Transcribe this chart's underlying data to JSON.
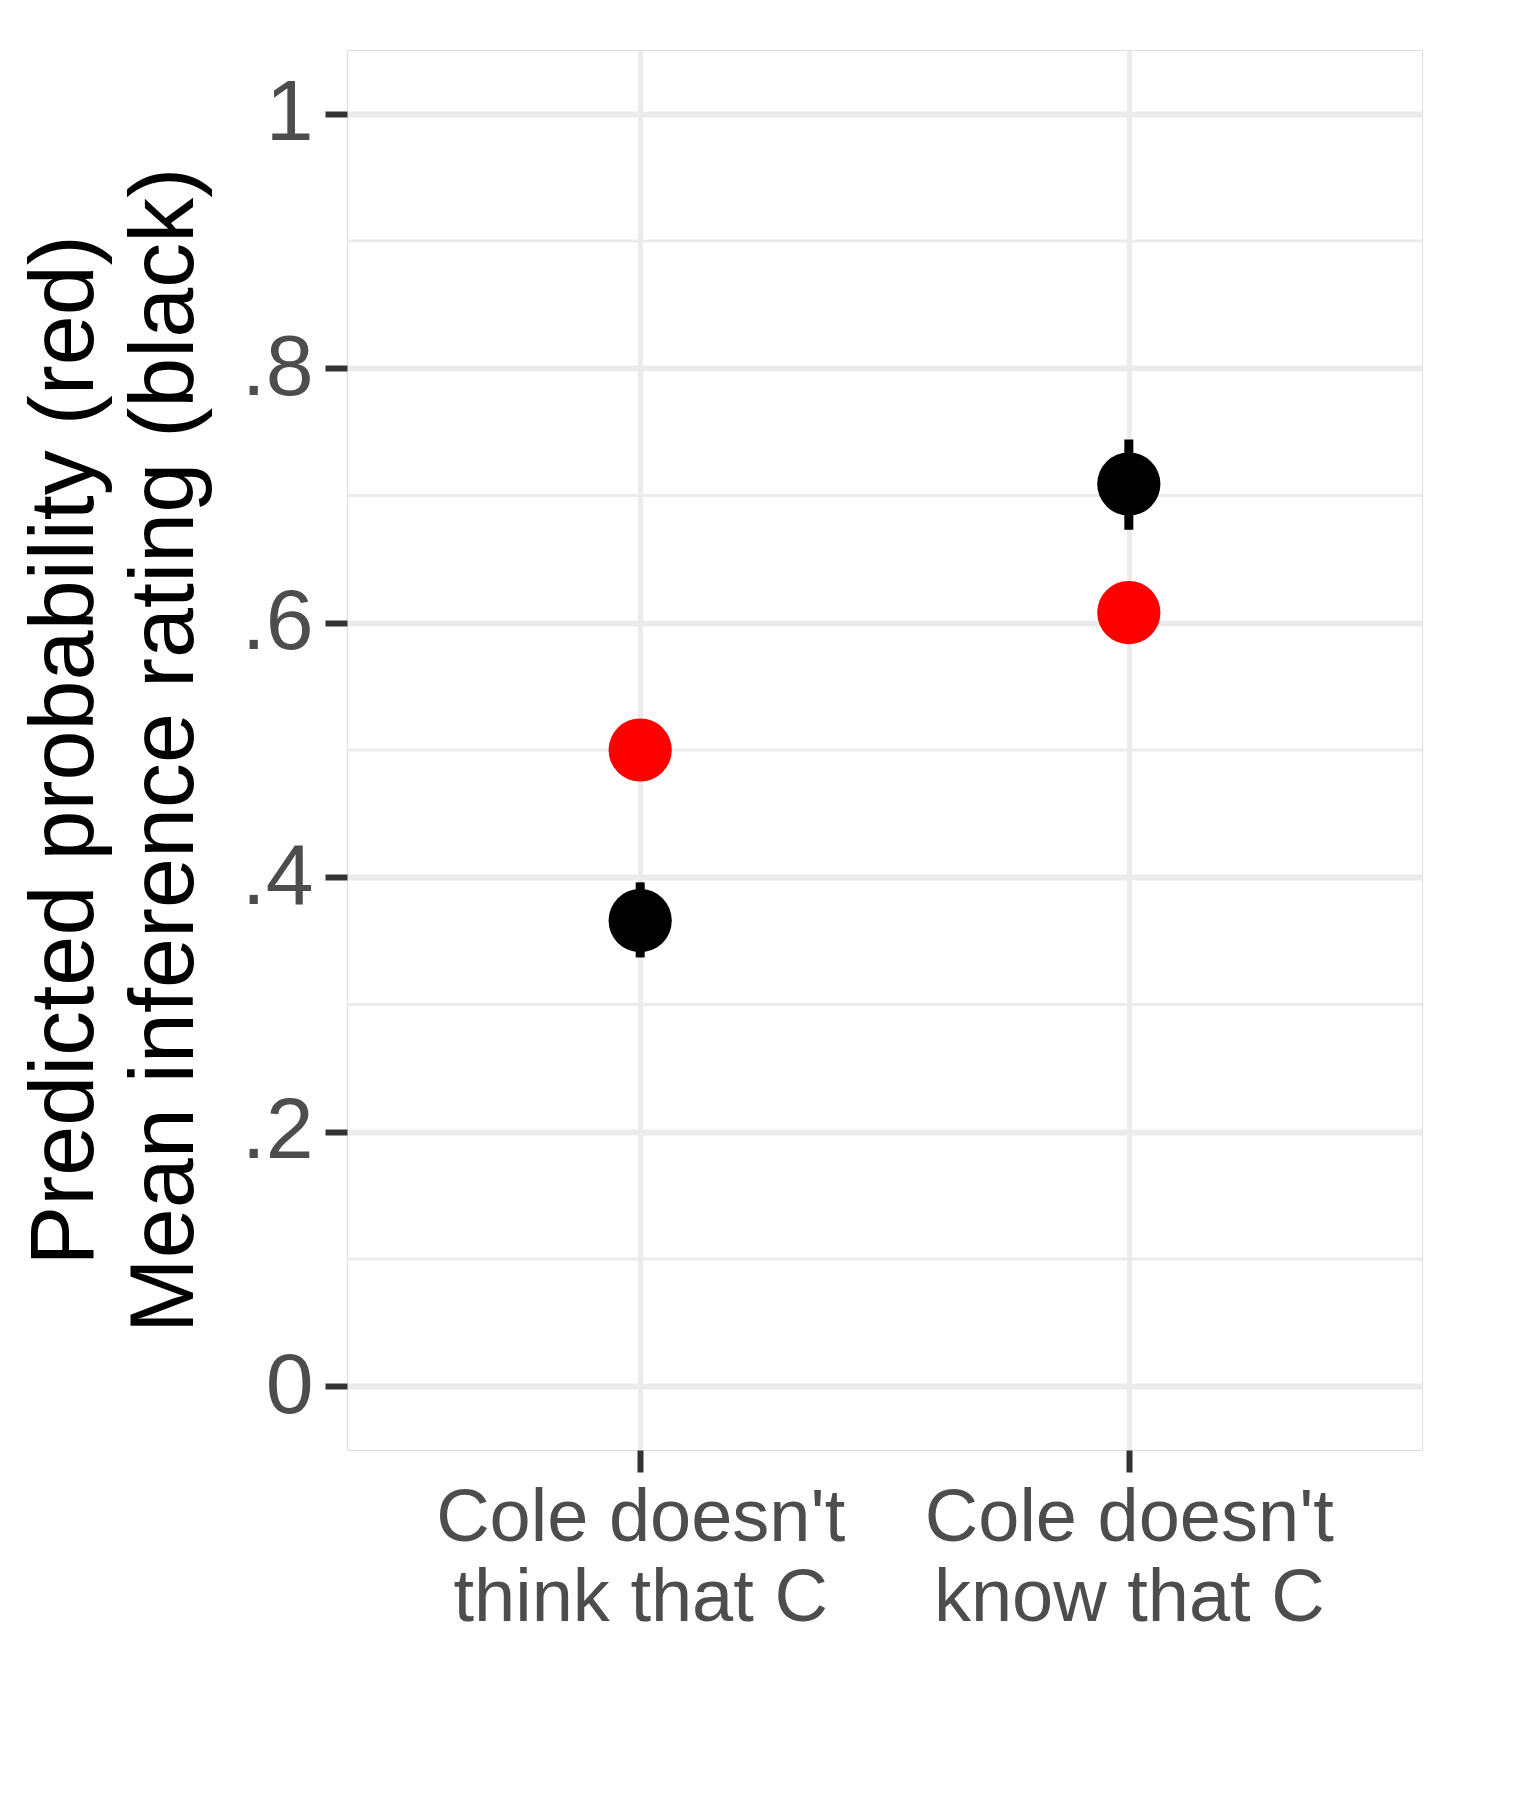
{
  "chart_data": {
    "type": "scatter",
    "ylabel": "Predicted probability (red)\nMean inference rating (black)",
    "categories": [
      "Cole doesn't\nthink that C",
      "Cole doesn't\nknow that C"
    ],
    "series": [
      {
        "color": "#ff0000",
        "values": [
          0.5,
          0.608
        ]
      },
      {
        "color": "#000000",
        "values": [
          0.366,
          0.709
        ],
        "errors": [
          [
            0.337,
            0.396
          ],
          [
            0.673,
            0.744
          ]
        ]
      }
    ],
    "ylim": [
      -0.05,
      1.05
    ],
    "yticks": [
      0,
      {
        "value": 0.2,
        "label": ".2"
      },
      {
        "value": 0.4,
        "label": ".4"
      },
      {
        "value": 0.6,
        "label": ".6"
      },
      {
        "value": 0.8,
        "label": ".8"
      },
      1
    ],
    "grid": true,
    "marker": "circle",
    "legend": false
  }
}
